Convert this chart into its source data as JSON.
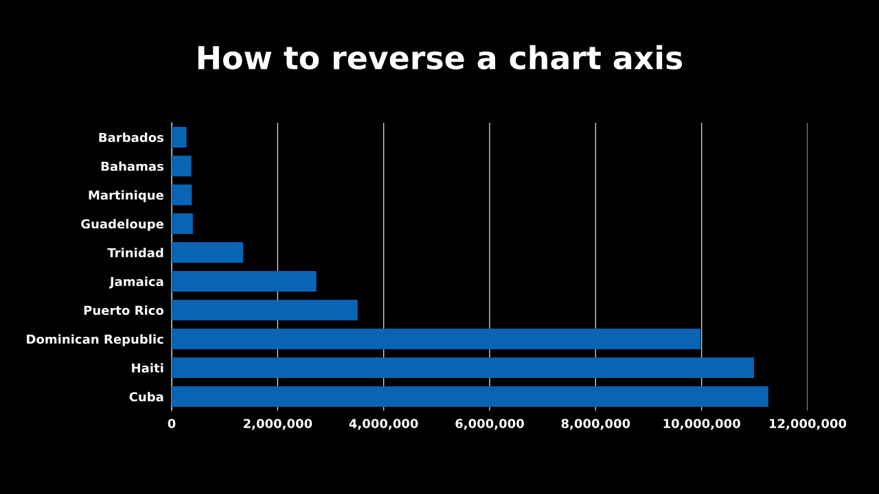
{
  "chart_data": {
    "type": "bar",
    "orientation": "horizontal",
    "title": "How to reverse a chart axis",
    "categories": [
      "Barbados",
      "Bahamas",
      "Martinique",
      "Guadeloupe",
      "Trinidad",
      "Jamaica",
      "Puerto Rico",
      "Dominican Republic",
      "Haiti",
      "Cuba"
    ],
    "values": [
      280000,
      370000,
      380000,
      400000,
      1350000,
      2730000,
      3510000,
      9980000,
      10990000,
      11260000
    ],
    "color": "#0a64b4",
    "xlim": [
      0,
      12000000
    ],
    "xticks": [
      0,
      {
        "value": 2000000,
        "label": "2,000,000"
      },
      {
        "value": 4000000,
        "label": "4,000,000"
      },
      {
        "value": 6000000,
        "label": "6,000,000"
      },
      {
        "value": 8000000,
        "label": "8,000,000"
      },
      {
        "value": 10000000,
        "label": "10,000,000"
      },
      {
        "value": 12000000,
        "label": "12,000,000"
      }
    ],
    "grid": "x",
    "legend": false
  }
}
